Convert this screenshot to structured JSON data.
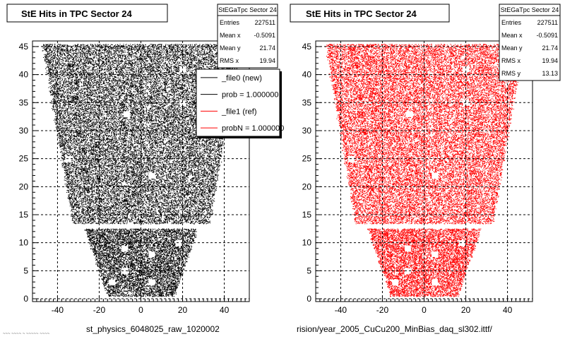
{
  "chart_data": [
    {
      "type": "scatter",
      "title": "StE Hits in TPC Sector 24",
      "color": "#000000",
      "xlim": [
        -52,
        52
      ],
      "ylim": [
        -0.5,
        46
      ],
      "xticks": [
        -40,
        -20,
        0,
        20,
        40
      ],
      "yticks": [
        0,
        5,
        10,
        15,
        20,
        25,
        30,
        35,
        40,
        45
      ],
      "grid": true,
      "caption": "st_physics_6048025_raw_1020002",
      "stats": {
        "name": "StEGaTpc Sector 24",
        "rows": [
          {
            "key": "Entries",
            "value": "227511"
          },
          {
            "key": "Mean x",
            "value": "-0.5091"
          },
          {
            "key": "Mean y",
            "value": "21.74"
          },
          {
            "key": "RMS x",
            "value": "19.94"
          }
        ]
      },
      "legend": {
        "placement": "top-right",
        "entries": [
          {
            "label": "_file0 (new)",
            "color": "#000000"
          },
          {
            "label": "prob = 1.000000",
            "color": "#000000"
          },
          {
            "label": "_file1 (ref)",
            "color": "#ff0000"
          },
          {
            "label": "probN = 1.000000",
            "color": "#ff0000"
          }
        ]
      },
      "region": {
        "outer_rows": [
          {
            "y": 13.5,
            "x": [
              -33,
              33
            ]
          },
          {
            "y": 45.5,
            "x": [
              -47.5,
              47.5
            ]
          }
        ],
        "inner_rows": [
          {
            "y": 0.5,
            "x": [
              -16,
              16
            ]
          },
          {
            "y": 12.5,
            "x": [
              -27,
              27
            ]
          }
        ],
        "holes": [
          {
            "x": 20,
            "y": 41
          },
          {
            "x": 20,
            "y": 35
          },
          {
            "x": -7,
            "y": 33
          },
          {
            "x": -35,
            "y": 25
          },
          {
            "x": 5,
            "y": 22
          },
          {
            "x": -8,
            "y": 9
          },
          {
            "x": 18,
            "y": 10
          },
          {
            "x": 5,
            "y": 8
          },
          {
            "x": -8,
            "y": 5
          },
          {
            "x": 5,
            "y": 3
          },
          {
            "x": -14,
            "y": 3
          }
        ]
      }
    },
    {
      "type": "scatter",
      "title": "StE Hits in TPC Sector 24",
      "color": "#ff0000",
      "xlim": [
        -52,
        52
      ],
      "ylim": [
        -0.5,
        46
      ],
      "xticks": [
        -40,
        -20,
        0,
        20,
        40
      ],
      "yticks": [
        0,
        5,
        10,
        15,
        20,
        25,
        30,
        35,
        40,
        45
      ],
      "grid": true,
      "caption": "rision/year_2005_CuCu200_MinBias_daq_sl302.ittf/",
      "stats": {
        "name": "StEGaTpc Sector 24",
        "rows": [
          {
            "key": "Entries",
            "value": "227511"
          },
          {
            "key": "Mean x",
            "value": "-0.5091"
          },
          {
            "key": "Mean y",
            "value": "21.74"
          },
          {
            "key": "RMS x",
            "value": "19.94"
          },
          {
            "key": "RMS y",
            "value": "13.13"
          }
        ]
      },
      "region": {
        "outer_rows": [
          {
            "y": 13.5,
            "x": [
              -33,
              33
            ]
          },
          {
            "y": 45.5,
            "x": [
              -47.5,
              47.5
            ]
          }
        ],
        "inner_rows": [
          {
            "y": 0.5,
            "x": [
              -16,
              16
            ]
          },
          {
            "y": 12.5,
            "x": [
              -27,
              27
            ]
          }
        ],
        "holes": [
          {
            "x": 20,
            "y": 41
          },
          {
            "x": 20,
            "y": 35
          },
          {
            "x": -7,
            "y": 33
          },
          {
            "x": -35,
            "y": 25
          },
          {
            "x": 5,
            "y": 22
          },
          {
            "x": -8,
            "y": 9
          },
          {
            "x": 18,
            "y": 10
          },
          {
            "x": 5,
            "y": 8
          },
          {
            "x": -8,
            "y": 5
          },
          {
            "x": 5,
            "y": 3
          },
          {
            "x": -14,
            "y": 3
          }
        ]
      }
    }
  ],
  "footer_note": "~~~ ~~~~ ~ ~~~~~ ~~~~"
}
